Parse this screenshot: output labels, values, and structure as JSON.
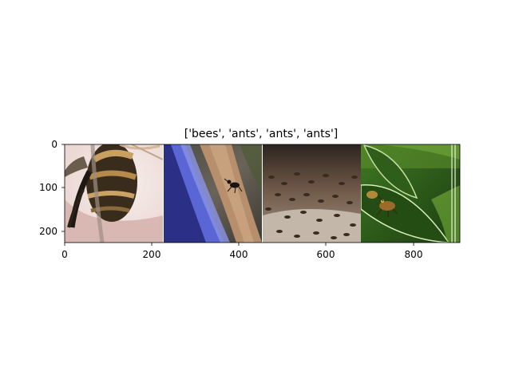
{
  "title": "['bees', 'ants', 'ants', 'ants']",
  "panels": [
    {
      "label": "bees",
      "subject": "bumblebee-close-up"
    },
    {
      "label": "ants",
      "subject": "ant-on-stick"
    },
    {
      "label": "ants",
      "subject": "ant-swarm"
    },
    {
      "label": "ants",
      "subject": "insect-on-leaf"
    }
  ],
  "axes": {
    "x_ticks": [
      "0",
      "200",
      "400",
      "600",
      "800"
    ],
    "y_ticks": [
      "0",
      "100",
      "200"
    ]
  }
}
